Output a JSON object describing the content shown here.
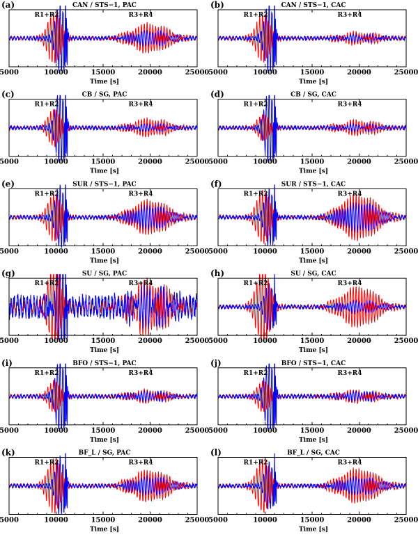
{
  "chart_data": [
    {
      "type": "line",
      "panel": "(a)",
      "title": "CAN / STS−1, PAC",
      "r1_peak": {
        "red": 0.85,
        "blue": 1.2
      },
      "r3_peak": {
        "red": 0.5,
        "blue": 0.25
      }
    },
    {
      "type": "line",
      "panel": "(b)",
      "title": "CAN / STS−1, CAC",
      "r1_peak": {
        "red": 0.8,
        "blue": 1.2
      },
      "r3_peak": {
        "red": 0.2,
        "blue": 0.1
      }
    },
    {
      "type": "line",
      "panel": "(c)",
      "title": "CB / SG, PAC",
      "r1_peak": {
        "red": 0.6,
        "blue": 1.3
      },
      "r3_peak": {
        "red": 0.3,
        "blue": 0.1
      }
    },
    {
      "type": "line",
      "panel": "(d)",
      "title": "CB / SG, CAC",
      "r1_peak": {
        "red": 0.4,
        "blue": 1.3
      },
      "r3_peak": {
        "red": 0.25,
        "blue": 0.1
      }
    },
    {
      "type": "line",
      "panel": "(e)",
      "title": "SUR / STS−1, PAC",
      "r1_peak": {
        "red": 0.8,
        "blue": 1.1
      },
      "r3_peak": {
        "red": 0.6,
        "blue": 0.4
      }
    },
    {
      "type": "line",
      "panel": "(f)",
      "title": "SUR / STS−1, CAC",
      "r1_peak": {
        "red": 0.9,
        "blue": 1.0
      },
      "r3_peak": {
        "red": 0.8,
        "blue": 0.5
      }
    },
    {
      "type": "line",
      "panel": "(g)",
      "title": "SU / SG, PAC",
      "r1_peak": {
        "red": 1.3,
        "blue": 1.2
      },
      "r3_peak": {
        "red": 0.9,
        "blue": 0.5
      }
    },
    {
      "type": "line",
      "panel": "(h)",
      "title": "SU / SG, CAC",
      "r1_peak": {
        "red": 1.3,
        "blue": 0.8
      },
      "r3_peak": {
        "red": 0.7,
        "blue": 0.2
      }
    },
    {
      "type": "line",
      "panel": "(i)",
      "title": "BFO / STS−1, PAC",
      "r1_peak": {
        "red": 0.5,
        "blue": 1.3
      },
      "r3_peak": {
        "red": 0.2,
        "blue": 0.15
      }
    },
    {
      "type": "line",
      "panel": "(j)",
      "title": "BFO / STS−1, CAC",
      "r1_peak": {
        "red": 0.5,
        "blue": 1.3
      },
      "r3_peak": {
        "red": 0.2,
        "blue": 0.15
      }
    },
    {
      "type": "line",
      "panel": "(k)",
      "title": "BF_L / SG, PAC",
      "r1_peak": {
        "red": 0.9,
        "blue": 1.0
      },
      "r3_peak": {
        "red": 0.55,
        "blue": 0.3
      }
    },
    {
      "type": "line",
      "panel": "(l)",
      "title": "BF_L / SG, CAC",
      "r1_peak": {
        "red": 0.9,
        "blue": 0.8
      },
      "r3_peak": {
        "red": 0.6,
        "blue": 0.3
      }
    }
  ],
  "shared": {
    "xlabel": "Time [s]",
    "xlim": [
      5000,
      25000
    ],
    "xticks": [
      "5000",
      "10000",
      "15000",
      "20000",
      "25000"
    ],
    "annotations": [
      "R1+R2",
      "R3+R4"
    ],
    "series_colors": {
      "red": "#ff0000",
      "blue": "#0000ff"
    }
  }
}
